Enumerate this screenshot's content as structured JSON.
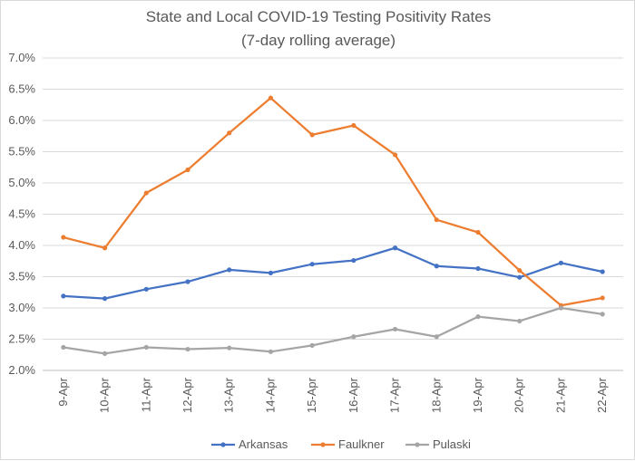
{
  "chart_data": {
    "type": "line",
    "title": "State and Local COVID-19 Testing Positivity Rates",
    "subtitle": "(7-day rolling average)",
    "xlabel": "",
    "ylabel": "",
    "ylim": [
      0.02,
      0.07
    ],
    "y_ticks": [
      "2.0%",
      "2.5%",
      "3.0%",
      "3.5%",
      "4.0%",
      "4.5%",
      "5.0%",
      "5.5%",
      "6.0%",
      "6.5%",
      "7.0%"
    ],
    "grid": "horizontal",
    "legend_position": "bottom",
    "categories": [
      "9-Apr",
      "10-Apr",
      "11-Apr",
      "12-Apr",
      "13-Apr",
      "14-Apr",
      "15-Apr",
      "16-Apr",
      "17-Apr",
      "18-Apr",
      "19-Apr",
      "20-Apr",
      "21-Apr",
      "22-Apr"
    ],
    "series": [
      {
        "name": "Arkansas",
        "color": "#4472C4",
        "values": [
          0.0319,
          0.0315,
          0.033,
          0.0342,
          0.0361,
          0.0356,
          0.037,
          0.0376,
          0.0396,
          0.0367,
          0.0363,
          0.0349,
          0.0372,
          0.0358
        ]
      },
      {
        "name": "Faulkner",
        "color": "#ED7D31",
        "values": [
          0.0413,
          0.0396,
          0.0484,
          0.0521,
          0.058,
          0.0636,
          0.0577,
          0.0592,
          0.0545,
          0.0441,
          0.0421,
          0.036,
          0.0304,
          0.0316
        ]
      },
      {
        "name": "Pulaski",
        "color": "#A5A5A5",
        "values": [
          0.0237,
          0.0227,
          0.0237,
          0.0234,
          0.0236,
          0.023,
          0.024,
          0.0254,
          0.0266,
          0.0254,
          0.0286,
          0.0279,
          0.03,
          0.029
        ]
      }
    ]
  }
}
